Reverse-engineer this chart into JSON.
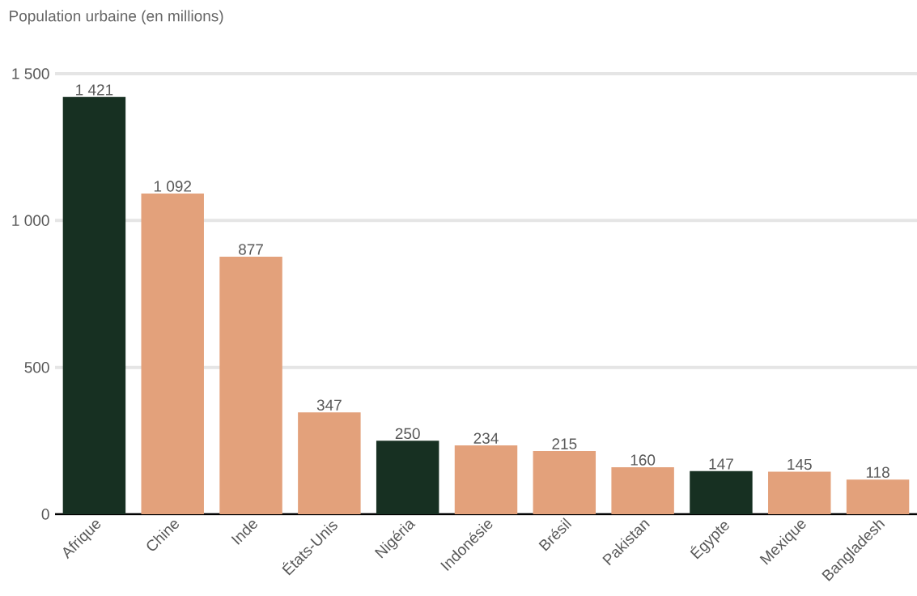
{
  "chart_data": {
    "type": "bar",
    "ylabel": "Population urbaine (en millions)",
    "categories": [
      "Afrique",
      "Chine",
      "Inde",
      "États-Unis",
      "Nigéria",
      "Indonésie",
      "Brésil",
      "Pakistan",
      "Égypte",
      "Mexique",
      "Bangladesh"
    ],
    "values": [
      1421,
      1092,
      877,
      347,
      250,
      234,
      215,
      160,
      147,
      145,
      118
    ],
    "value_labels": [
      "1 421",
      "1 092",
      "877",
      "347",
      "250",
      "234",
      "215",
      "160",
      "147",
      "145",
      "118"
    ],
    "colors": [
      "#173022",
      "#e3a17b",
      "#e3a17b",
      "#e3a17b",
      "#173022",
      "#e3a17b",
      "#e3a17b",
      "#e3a17b",
      "#173022",
      "#e3a17b",
      "#e3a17b"
    ],
    "ylim": [
      0,
      1500
    ],
    "yticks": [
      0,
      500,
      {
        "value": 1000,
        "label": "1 000"
      },
      {
        "value": 1500,
        "label": "1 500"
      }
    ],
    "grid": "y"
  }
}
